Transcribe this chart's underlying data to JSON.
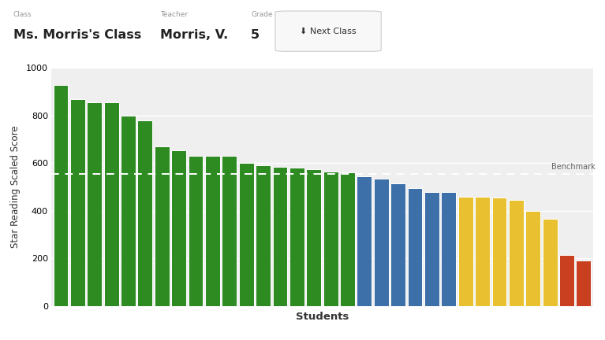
{
  "values": [
    930,
    870,
    855,
    855,
    800,
    780,
    670,
    655,
    630,
    630,
    630,
    600,
    590,
    585,
    580,
    575,
    565,
    560,
    545,
    535,
    515,
    495,
    480,
    480,
    460,
    460,
    455,
    445,
    400,
    365,
    215,
    190
  ],
  "colors": [
    "#2e8b22",
    "#2e8b22",
    "#2e8b22",
    "#2e8b22",
    "#2e8b22",
    "#2e8b22",
    "#2e8b22",
    "#2e8b22",
    "#2e8b22",
    "#2e8b22",
    "#2e8b22",
    "#2e8b22",
    "#2e8b22",
    "#2e8b22",
    "#2e8b22",
    "#2e8b22",
    "#2e8b22",
    "#2e8b22",
    "#3d6fa8",
    "#3d6fa8",
    "#3d6fa8",
    "#3d6fa8",
    "#3d6fa8",
    "#3d6fa8",
    "#e8c030",
    "#e8c030",
    "#e8c030",
    "#e8c030",
    "#e8c030",
    "#e8c030",
    "#c94020",
    "#c94020"
  ],
  "benchmark": 555,
  "benchmark_label": "Benchmark",
  "ylabel": "Star Reading Scaled Score",
  "xlabel": "Students",
  "ylim": [
    0,
    1000
  ],
  "yticks": [
    0,
    200,
    400,
    600,
    800,
    1000
  ],
  "background_color": "#efefef",
  "bar_edge_color": "white",
  "header_bg": "#ffffff",
  "class_label": "Class",
  "class_value": "Ms. Morris's Class",
  "teacher_label": "Teacher",
  "teacher_value": "Morris, V.",
  "grade_label": "Grade",
  "grade_value": "5",
  "button_text": "⬇ Next Class",
  "fig_width": 7.67,
  "fig_height": 4.32,
  "fig_dpi": 100
}
